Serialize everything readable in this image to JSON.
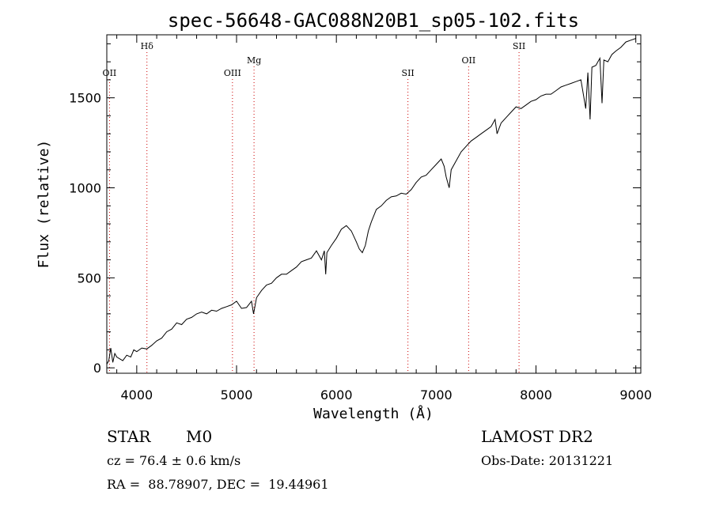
{
  "chart_data": {
    "type": "line",
    "title": "spec-56648-GAC088N20B1_sp05-102.fits",
    "xlabel": "Wavelength (Å)",
    "ylabel": "Flux (relative)",
    "xlim": [
      3700,
      9050
    ],
    "ylim": [
      -30,
      1850
    ],
    "x_ticks": [
      4000,
      5000,
      6000,
      7000,
      8000,
      9000
    ],
    "x_tick_labels": [
      "4000",
      "5000",
      "6000",
      "7000",
      "8000",
      "9000"
    ],
    "y_ticks": [
      0,
      500,
      1000,
      1500
    ],
    "y_tick_labels": [
      "0",
      "500",
      "1000",
      "1500"
    ],
    "line_markers": [
      {
        "label": "OII",
        "x": 3727,
        "label_level": 3
      },
      {
        "label": "Hδ",
        "x": 4102,
        "label_level": 1
      },
      {
        "label": "OIII",
        "x": 4959,
        "label_level": 3
      },
      {
        "label": "Mg",
        "x": 5175,
        "label_level": 2
      },
      {
        "label": "SII",
        "x": 6717,
        "label_level": 3
      },
      {
        "label": "OII",
        "x": 7325,
        "label_level": 2
      },
      {
        "label": "SII",
        "x": 7830,
        "label_level": 1
      }
    ],
    "series": [
      {
        "name": "spectrum",
        "x": [
          3700,
          3720,
          3740,
          3760,
          3780,
          3800,
          3830,
          3860,
          3900,
          3940,
          3970,
          4000,
          4050,
          4100,
          4150,
          4200,
          4250,
          4300,
          4350,
          4400,
          4450,
          4500,
          4550,
          4600,
          4650,
          4700,
          4750,
          4800,
          4850,
          4900,
          4950,
          5000,
          5050,
          5100,
          5150,
          5170,
          5200,
          5250,
          5300,
          5350,
          5400,
          5450,
          5500,
          5550,
          5600,
          5650,
          5700,
          5750,
          5800,
          5850,
          5880,
          5893,
          5905,
          5950,
          6000,
          6050,
          6100,
          6150,
          6200,
          6230,
          6260,
          6290,
          6320,
          6350,
          6400,
          6450,
          6500,
          6550,
          6600,
          6650,
          6700,
          6750,
          6800,
          6850,
          6900,
          6950,
          7000,
          7050,
          7080,
          7100,
          7130,
          7150,
          7200,
          7250,
          7300,
          7350,
          7400,
          7450,
          7500,
          7550,
          7590,
          7610,
          7650,
          7700,
          7750,
          7800,
          7850,
          7900,
          7950,
          8000,
          8050,
          8100,
          8150,
          8200,
          8250,
          8300,
          8350,
          8400,
          8450,
          8498,
          8520,
          8542,
          8560,
          8600,
          8640,
          8662,
          8680,
          8720,
          8760,
          8800,
          8850,
          8900,
          8950,
          9000
        ],
        "values": [
          20,
          40,
          110,
          30,
          80,
          60,
          50,
          40,
          70,
          60,
          100,
          90,
          110,
          105,
          125,
          150,
          165,
          200,
          215,
          250,
          240,
          270,
          280,
          300,
          310,
          300,
          320,
          315,
          330,
          340,
          350,
          370,
          330,
          335,
          370,
          300,
          390,
          430,
          460,
          470,
          500,
          520,
          520,
          540,
          560,
          590,
          600,
          610,
          650,
          600,
          650,
          520,
          640,
          680,
          720,
          770,
          790,
          760,
          700,
          660,
          640,
          680,
          760,
          810,
          880,
          900,
          930,
          950,
          955,
          970,
          965,
          990,
          1030,
          1060,
          1070,
          1100,
          1130,
          1160,
          1120,
          1060,
          1000,
          1100,
          1150,
          1200,
          1230,
          1260,
          1280,
          1300,
          1320,
          1340,
          1380,
          1300,
          1360,
          1390,
          1420,
          1450,
          1440,
          1460,
          1480,
          1490,
          1510,
          1520,
          1520,
          1540,
          1560,
          1570,
          1580,
          1590,
          1600,
          1440,
          1640,
          1380,
          1670,
          1680,
          1720,
          1470,
          1710,
          1700,
          1740,
          1760,
          1780,
          1810,
          1820,
          1830
        ]
      }
    ]
  },
  "footer": {
    "object_type": "STAR",
    "subclass": "M0",
    "survey": "LAMOST DR2",
    "redshift": "cz = 76.4 ± 0.6 km/s",
    "obs_date": "Obs-Date: 20131221",
    "coordinates": "RA =  88.78907, DEC =  19.44961"
  }
}
